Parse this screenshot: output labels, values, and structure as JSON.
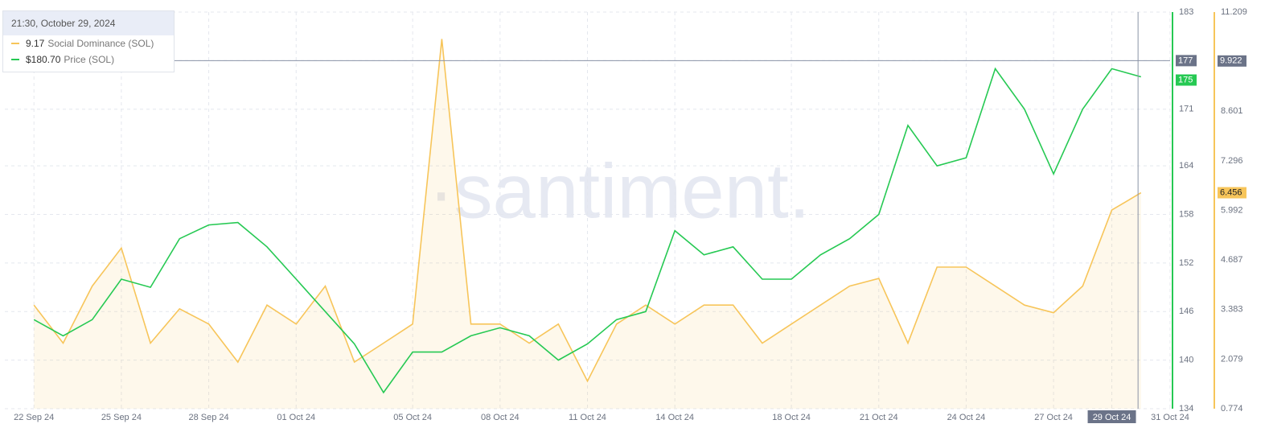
{
  "chart_data": {
    "type": "line",
    "watermark": "·santiment.",
    "x": [
      "2024-09-22",
      "2024-09-23",
      "2024-09-24",
      "2024-09-25",
      "2024-09-26",
      "2024-09-27",
      "2024-09-28",
      "2024-09-29",
      "2024-09-30",
      "2024-10-01",
      "2024-10-02",
      "2024-10-03",
      "2024-10-04",
      "2024-10-05",
      "2024-10-06",
      "2024-10-07",
      "2024-10-08",
      "2024-10-09",
      "2024-10-10",
      "2024-10-11",
      "2024-10-12",
      "2024-10-13",
      "2024-10-14",
      "2024-10-15",
      "2024-10-16",
      "2024-10-17",
      "2024-10-18",
      "2024-10-19",
      "2024-10-20",
      "2024-10-21",
      "2024-10-22",
      "2024-10-23",
      "2024-10-24",
      "2024-10-25",
      "2024-10-26",
      "2024-10-27",
      "2024-10-28",
      "2024-10-29",
      "2024-10-30"
    ],
    "series": [
      {
        "name": "Social Dominance (SOL)",
        "color": "#f7c55a",
        "axis": "y2",
        "values": [
          3.5,
          2.5,
          4,
          5,
          2.5,
          3.4,
          3,
          2,
          3.5,
          3,
          4,
          2,
          2.5,
          3,
          10.5,
          3,
          3,
          2.5,
          3,
          1.5,
          3,
          3.5,
          3,
          3.5,
          3.5,
          2.5,
          3,
          3.5,
          4,
          4.2,
          2.5,
          4.5,
          4.5,
          4,
          3.5,
          3.3,
          4,
          6,
          6.456
        ]
      },
      {
        "name": "Price (SOL)",
        "color": "#26c953",
        "values": [
          145,
          143,
          145,
          150,
          149,
          155,
          156.7,
          157,
          154,
          150,
          146,
          142,
          136,
          141,
          141,
          143,
          144,
          143,
          140,
          142,
          145,
          146,
          156,
          153,
          154,
          150,
          150,
          153,
          155,
          158,
          169,
          164,
          165,
          176,
          171,
          163,
          171,
          176,
          175
        ]
      }
    ],
    "xlim": [
      "2024-09-21",
      "2024-10-31"
    ],
    "xticks": [
      {
        "value": "2024-09-22",
        "label": "22 Sep 24"
      },
      {
        "value": "2024-09-25",
        "label": "25 Sep 24"
      },
      {
        "value": "2024-09-28",
        "label": "28 Sep 24"
      },
      {
        "value": "2024-10-01",
        "label": "01 Oct 24"
      },
      {
        "value": "2024-10-05",
        "label": "05 Oct 24"
      },
      {
        "value": "2024-10-08",
        "label": "08 Oct 24"
      },
      {
        "value": "2024-10-11",
        "label": "11 Oct 24"
      },
      {
        "value": "2024-10-14",
        "label": "14 Oct 24"
      },
      {
        "value": "2024-10-18",
        "label": "18 Oct 24"
      },
      {
        "value": "2024-10-21",
        "label": "21 Oct 24"
      },
      {
        "value": "2024-10-24",
        "label": "24 Oct 24"
      },
      {
        "value": "2024-10-27",
        "label": "27 Oct 24"
      },
      {
        "value": "2024-10-29",
        "label": "29 Oct 24"
      },
      {
        "value": "2024-10-31",
        "label": "31 Oct 24"
      }
    ],
    "ylim": [
      134,
      183
    ],
    "yticks": [
      134,
      140,
      146,
      152,
      158,
      164,
      171,
      177,
      183
    ],
    "y2lim": [
      0.774,
      11.209
    ],
    "y2ticks": [
      0.774,
      2.079,
      3.383,
      4.687,
      5.992,
      7.296,
      8.601,
      11.209
    ],
    "grid": true,
    "crosshair": {
      "x": "2024-10-29",
      "price": 177,
      "dominance": 9.922
    },
    "tooltip": {
      "title": "21:30, October 29, 2024",
      "items": [
        {
          "label": "9.17",
          "name": "Social Dominance (SOL)",
          "color": "#f7c55a"
        },
        {
          "label": "$180.70",
          "name": "Price (SOL)",
          "color": "#26c953"
        }
      ]
    }
  }
}
